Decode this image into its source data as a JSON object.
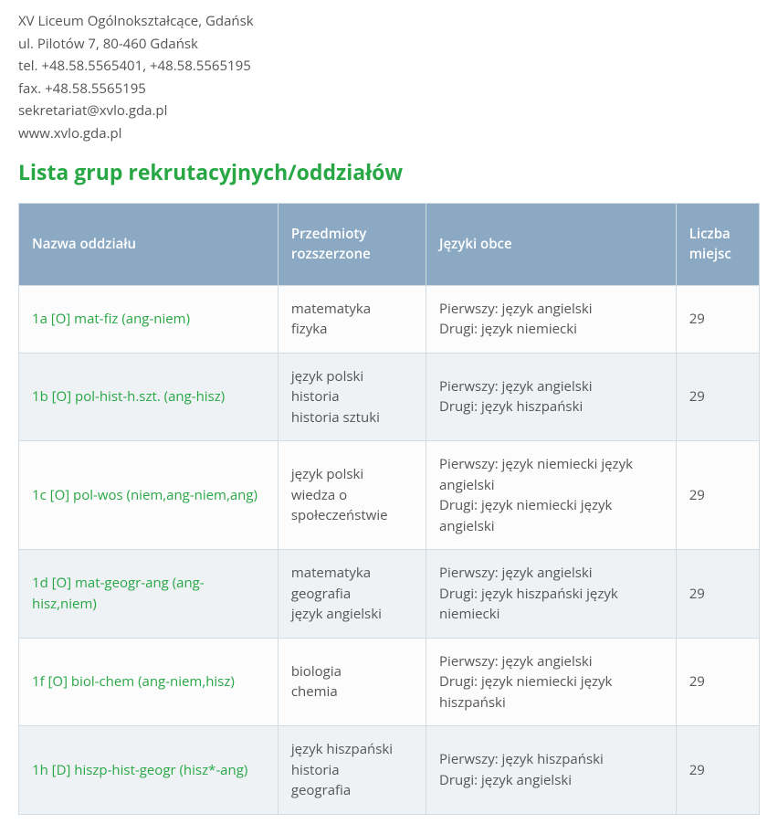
{
  "school": {
    "name": "XV Liceum Ogólnokształcące, Gdańsk",
    "address": "ul. Pilotów 7, 80-460 Gdańsk",
    "phone": "tel. +48.58.5565401, +48.58.5565195",
    "fax": "fax. +48.58.5565195",
    "email": "sekretariat@xvlo.gda.pl",
    "www": "www.xvlo.gda.pl"
  },
  "heading": "Lista grup rekrutacyjnych/oddziałów",
  "colors": {
    "accent": "#28a745",
    "header_bg": "#8ca9c4",
    "header_text": "#ffffff",
    "row_odd": "#fcfcfc",
    "row_even": "#eef2f5",
    "border": "#d3dbe2",
    "text": "#555555"
  },
  "table": {
    "columns": [
      "Nazwa oddziału",
      "Przedmioty rozszerzone",
      "Języki obce",
      "Liczba miejsc"
    ],
    "rows": [
      {
        "name": "1a [O] mat-fiz (ang-niem)",
        "subjects": "matematyka\nfizyka",
        "languages": "Pierwszy: język angielski\nDrugi: język niemiecki",
        "seats": "29"
      },
      {
        "name": "1b [O] pol-hist-h.szt. (ang-hisz)",
        "subjects": "język polski\nhistoria\nhistoria sztuki",
        "languages": "Pierwszy: język angielski\nDrugi: język hiszpański",
        "seats": "29"
      },
      {
        "name": "1c [O] pol-wos (niem,ang-niem,ang)",
        "subjects": "język polski\nwiedza o społeczeństwie",
        "languages": "Pierwszy: język niemiecki język angielski\nDrugi: język niemiecki język angielski",
        "seats": "29"
      },
      {
        "name": "1d [O] mat-geogr-ang (ang-hisz,niem)",
        "subjects": "matematyka\ngeografia\njęzyk angielski",
        "languages": "Pierwszy: język angielski\nDrugi: język hiszpański język niemiecki",
        "seats": "29"
      },
      {
        "name": "1f [O] biol-chem (ang-niem,hisz)",
        "subjects": "biologia\nchemia",
        "languages": "Pierwszy: język angielski\nDrugi: język niemiecki język hiszpański",
        "seats": "29"
      },
      {
        "name": "1h [D] hiszp-hist-geogr (hisz*-ang)",
        "subjects": "język hiszpański\nhistoria\ngeografia",
        "languages": "Pierwszy: język hiszpański\nDrugi: język angielski",
        "seats": "29"
      }
    ]
  }
}
